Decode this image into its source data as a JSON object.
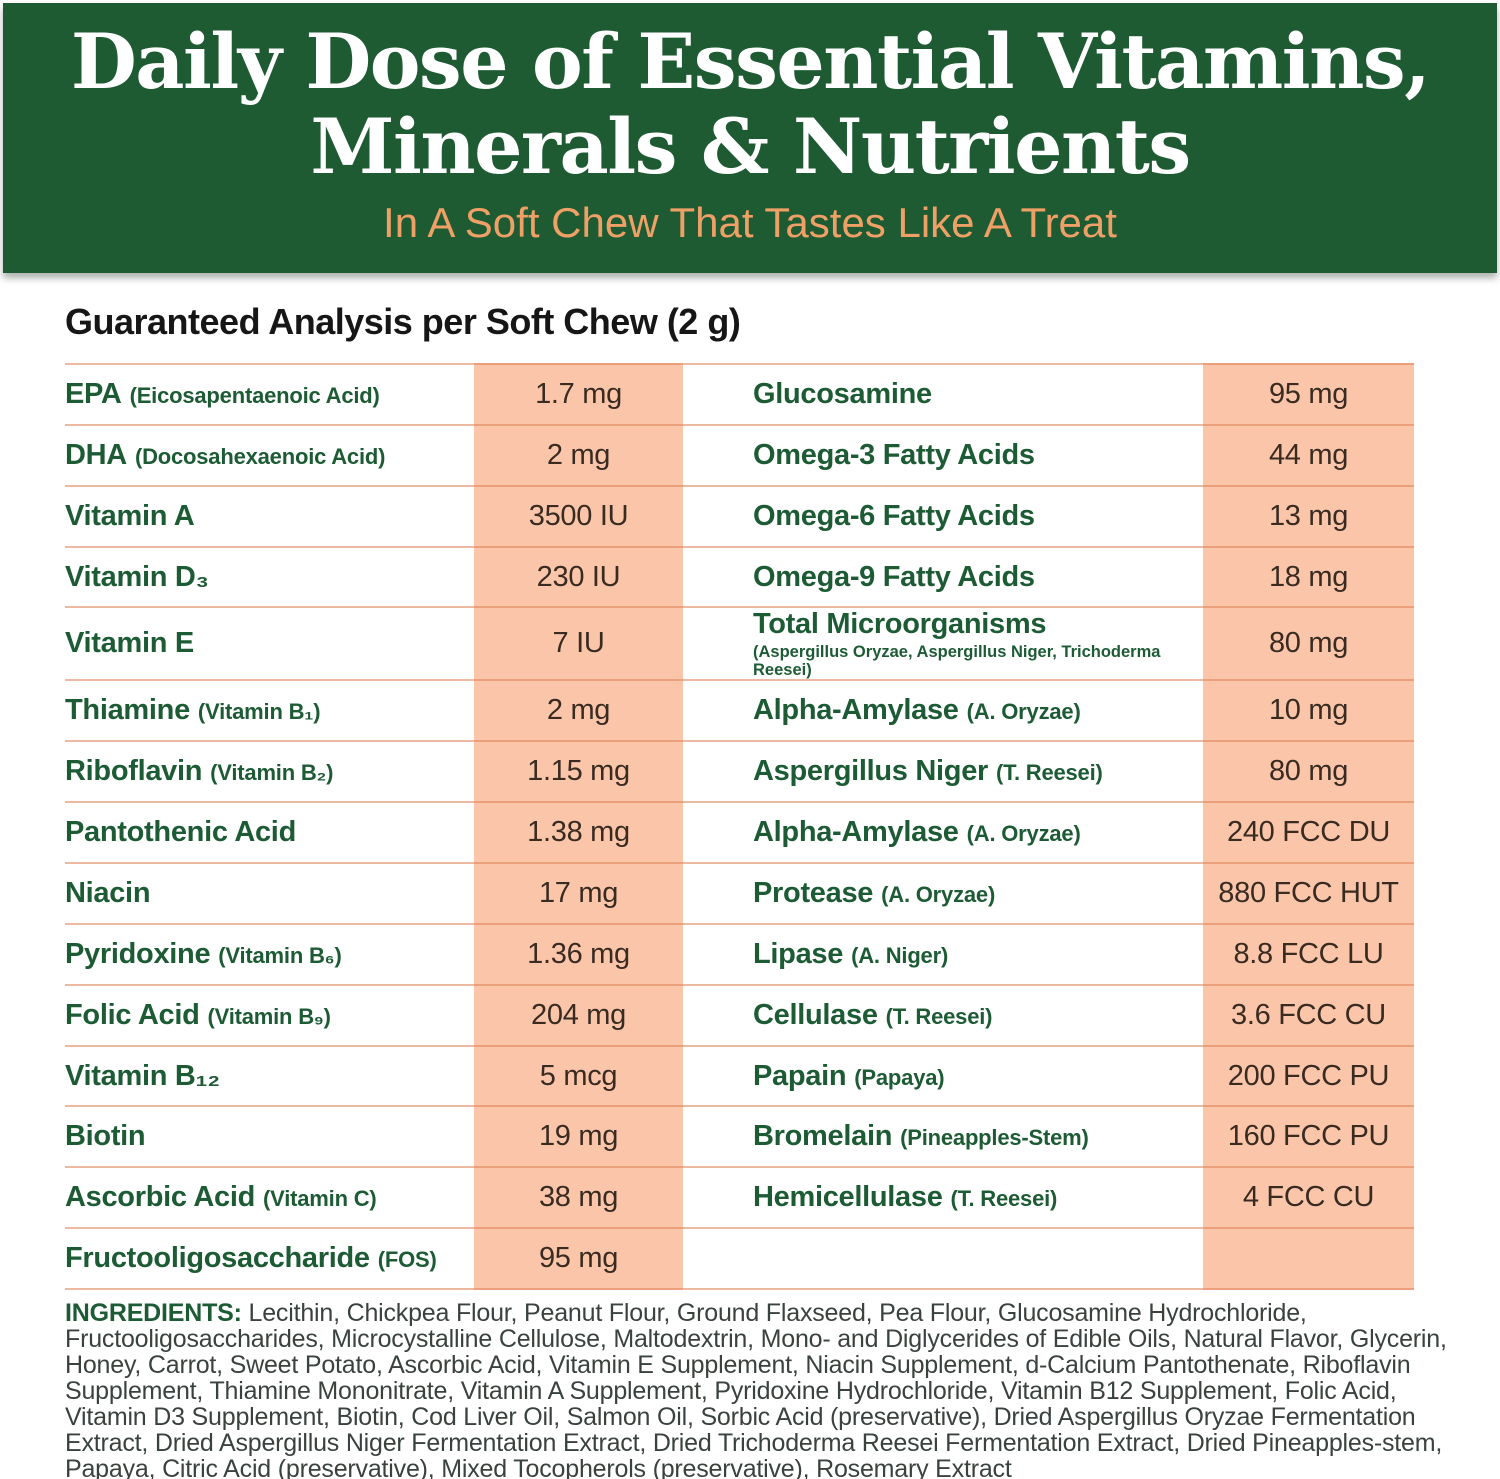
{
  "header": {
    "title_line1": "Daily Dose of Essential Vitamins,",
    "title_line2": "Minerals & Nutrients",
    "subtitle": "In A Soft Chew That Tastes Like A Treat"
  },
  "analysis": {
    "heading": "Guaranteed Analysis per Soft Chew (2 g)",
    "left_rows": [
      {
        "name": "EPA",
        "note": "(Eicosapentaenoic Acid)",
        "value": "1.7 mg"
      },
      {
        "name": "DHA",
        "note": "(Docosahexaenoic Acid)",
        "value": "2 mg"
      },
      {
        "name": "Vitamin A",
        "note": "",
        "value": "3500 IU"
      },
      {
        "name": "Vitamin D₃",
        "note": "",
        "value": "230 IU"
      },
      {
        "name": "Vitamin E",
        "note": "",
        "value": "7 IU"
      },
      {
        "name": "Thiamine",
        "note": "(Vitamin B₁)",
        "value": "2 mg"
      },
      {
        "name": "Riboflavin",
        "note": "(Vitamin B₂)",
        "value": "1.15 mg"
      },
      {
        "name": "Pantothenic Acid",
        "note": "",
        "value": "1.38 mg"
      },
      {
        "name": "Niacin",
        "note": "",
        "value": "17 mg"
      },
      {
        "name": "Pyridoxine",
        "note": "(Vitamin B₆)",
        "value": "1.36 mg"
      },
      {
        "name": "Folic Acid",
        "note": "(Vitamin B₉)",
        "value": "204 mg"
      },
      {
        "name": "Vitamin B₁₂",
        "note": "",
        "value": "5 mcg"
      },
      {
        "name": "Biotin",
        "note": "",
        "value": "19 mg"
      },
      {
        "name": "Ascorbic Acid",
        "note": "(Vitamin C)",
        "value": "38 mg"
      },
      {
        "name": "Fructooligosaccharide",
        "note": "(FOS)",
        "value": "95 mg"
      }
    ],
    "right_rows": [
      {
        "name": "Glucosamine",
        "note": "",
        "value": "95 mg"
      },
      {
        "name": "Omega-3 Fatty Acids",
        "note": "",
        "value": "44 mg"
      },
      {
        "name": "Omega-6 Fatty Acids",
        "note": "",
        "value": "13 mg"
      },
      {
        "name": "Omega-9 Fatty Acids",
        "note": "",
        "value": "18 mg"
      },
      {
        "name": "Total Microorganisms",
        "note": "(Aspergillus Oryzae, Aspergillus Niger, Trichoderma Reesei)",
        "value": "80 mg"
      },
      {
        "name": "Alpha-Amylase",
        "note": "(A. Oryzae)",
        "value": "10 mg"
      },
      {
        "name": "Aspergillus Niger",
        "note": "(T. Reesei)",
        "value": "80 mg"
      },
      {
        "name": "Alpha-Amylase",
        "note": "(A. Oryzae)",
        "value": "240 FCC DU"
      },
      {
        "name": "Protease",
        "note": "(A. Oryzae)",
        "value": "880 FCC HUT"
      },
      {
        "name": "Lipase",
        "note": "(A. Niger)",
        "value": "8.8 FCC LU"
      },
      {
        "name": "Cellulase",
        "note": "(T. Reesei)",
        "value": "3.6 FCC CU"
      },
      {
        "name": "Papain",
        "note": "(Papaya)",
        "value": "200 FCC PU"
      },
      {
        "name": "Bromelain",
        "note": "(Pineapples-Stem)",
        "value": "160 FCC PU"
      },
      {
        "name": "Hemicellulase",
        "note": "(T. Reesei)",
        "value": "4 FCC CU"
      },
      {
        "name": "",
        "note": "",
        "value": ""
      }
    ]
  },
  "ingredients": {
    "label": "INGREDIENTS:",
    "text": " Lecithin, Chickpea Flour, Peanut Flour, Ground Flaxseed, Pea Flour, Glucosamine Hydrochloride, Fructooligosaccharides, Microcystalline Cellulose, Maltodextrin, Mono- and Diglycerides of Edible Oils, Natural Flavor, Glycerin, Honey, Carrot, Sweet Potato, Ascorbic Acid, Vitamin E Supplement, Niacin Supplement, d-Calcium Pantothenate, Riboflavin Supplement, Thiamine Mononitrate, Vitamin A Supplement, Pyridoxine Hydrochloride, Vitamin B12 Supplement, Folic Acid, Vitamin D3 Supplement, Biotin, Cod Liver Oil, Salmon Oil, Sorbic Acid (preservative), Dried Aspergillus Oryzae Fermentation Extract, Dried Aspergillus Niger Fermentation Extract, Dried Trichoderma Reesei Fermentation Extract, Dried Pineapples-stem, Papaya, Citric Acid (preservative), Mixed Tocopherols (preservative), Rosemary Extract"
  },
  "colors": {
    "banner_green": "#1e5b33",
    "subtitle_orange": "#efa066",
    "label_green": "#1d5b35",
    "value_text": "#3a2b21",
    "peach_band": "#fbc5aa",
    "divider": "#df8052"
  }
}
